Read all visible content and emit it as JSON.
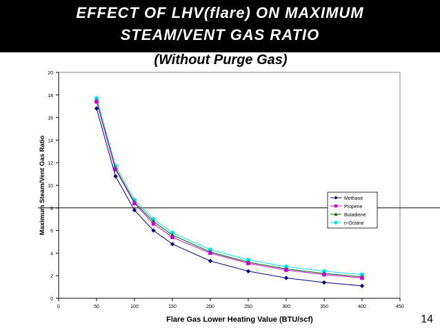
{
  "title_lines": [
    "EFFECT OF LHV(flare) ON MAXIMUM",
    "STEAM/VENT GAS RATIO"
  ],
  "subtitle": "(Without Purge Gas)",
  "page_number": "14",
  "colors": {
    "title_bar": "#000000",
    "Methane": "#000080",
    "Propene": "#cc00cc",
    "Butadiene": "#006600",
    "n-Octane": "#00e5ee"
  },
  "chart_data": {
    "type": "line",
    "xlabel": "Flare Gas Lower Heating Value (BTU/scf)",
    "ylabel": "Maximum Steam/Vent Gas Ratio",
    "xlim": [
      0,
      450
    ],
    "ylim": [
      0,
      20
    ],
    "x_ticks": [
      0,
      50,
      100,
      150,
      200,
      250,
      300,
      350,
      400,
      450
    ],
    "y_ticks": [
      0,
      2,
      4,
      6,
      8,
      10,
      12,
      14,
      16,
      18,
      20
    ],
    "grid": "horizontal line at 8",
    "legend_position": "right",
    "x": [
      50,
      75,
      100,
      125,
      150,
      200,
      250,
      300,
      350,
      400
    ],
    "series": [
      {
        "name": "Methane",
        "marker": "diamond",
        "values": [
          16.8,
          10.8,
          7.8,
          6.0,
          4.8,
          3.3,
          2.4,
          1.8,
          1.4,
          1.1
        ]
      },
      {
        "name": "Propene",
        "marker": "square",
        "values": [
          17.4,
          11.4,
          8.4,
          6.6,
          5.4,
          4.0,
          3.1,
          2.5,
          2.1,
          1.8
        ]
      },
      {
        "name": "Butadiene",
        "marker": "triangle",
        "values": [
          17.5,
          11.5,
          8.5,
          6.8,
          5.6,
          4.1,
          3.2,
          2.6,
          2.2,
          1.9
        ]
      },
      {
        "name": "n-Octane",
        "marker": "circle",
        "values": [
          17.7,
          11.7,
          8.7,
          7.0,
          5.8,
          4.3,
          3.4,
          2.8,
          2.4,
          2.1
        ]
      }
    ]
  }
}
